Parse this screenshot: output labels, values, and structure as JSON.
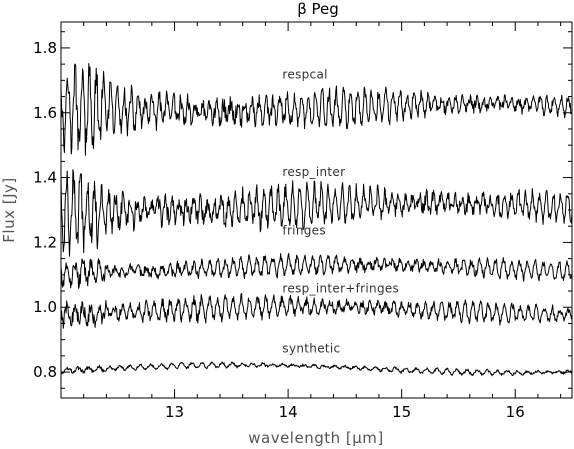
{
  "chart_data": {
    "type": "line",
    "title": "β Peg",
    "xlabel": "wavelength [μm]",
    "ylabel": "Flux [Jy]",
    "xlim": [
      12.0,
      16.5
    ],
    "ylim": [
      0.72,
      1.88
    ],
    "xticks": [
      13,
      14,
      15,
      16
    ],
    "xtick_labels": [
      "13",
      "14",
      "15",
      "16"
    ],
    "yticks": [
      0.8,
      1.0,
      1.2,
      1.4,
      1.6,
      1.8
    ],
    "ytick_labels": [
      "0.8",
      "1.0",
      "1.2",
      "1.4",
      "1.6",
      "1.8"
    ],
    "grid": false,
    "series": [
      {
        "name": "respcal",
        "level": 1.615,
        "label_x": 13.95,
        "label_y": 1.705,
        "amplitude_start": 0.07,
        "amplitude_end": 0.03,
        "period": 0.062
      },
      {
        "name": "resp_inter",
        "level": 1.31,
        "label_x": 13.95,
        "label_y": 1.405,
        "amplitude_start": 0.07,
        "amplitude_end": 0.04,
        "period": 0.062
      },
      {
        "name": "fringes",
        "level": 1.12,
        "label_x": 13.95,
        "label_y": 1.225,
        "amplitude_start": 0.03,
        "amplitude_end": 0.025,
        "period": 0.07
      },
      {
        "name": "resp_inter+fringes",
        "level": 0.99,
        "label_x": 13.95,
        "label_y": 1.045,
        "amplitude_start": 0.035,
        "amplitude_end": 0.025,
        "period": 0.07
      },
      {
        "name": "synthetic",
        "level": 0.81,
        "label_x": 13.95,
        "label_y": 0.86,
        "amplitude_start": 0.008,
        "amplitude_end": 0.008,
        "period": 0.09
      }
    ]
  }
}
